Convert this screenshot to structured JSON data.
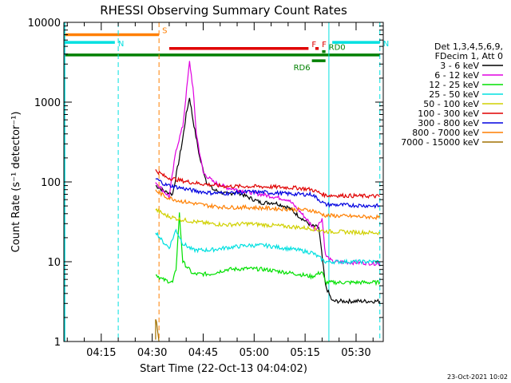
{
  "chart_data": {
    "type": "line",
    "title": "RHESSI Observing Summary Count Rates",
    "xlabel": "Start Time (22-Oct-13 04:04:02)",
    "ylabel": "Count Rate (s⁻¹ detector⁻¹)",
    "y_scale": "log",
    "ylim": [
      1,
      10000
    ],
    "xlim": [
      "04:04",
      "05:38"
    ],
    "x_ticks": [
      "04:15",
      "04:30",
      "04:45",
      "05:00",
      "05:15",
      "05:30"
    ],
    "y_ticks": [
      "1",
      "10",
      "100",
      "1000",
      "10000"
    ],
    "legend_header": [
      "Det 1,3,4,5,6,9,",
      "FDecim 1, Att 0"
    ],
    "timestamp": "23-Oct-2021 10:02",
    "series": [
      {
        "name": "3 - 6 keV",
        "color": "#000000",
        "points": [
          [
            "04:31",
            90
          ],
          [
            "04:34",
            75
          ],
          [
            "04:36",
            70
          ],
          [
            "04:38",
            200
          ],
          [
            "04:39",
            350
          ],
          [
            "04:40",
            700
          ],
          [
            "04:41",
            1150
          ],
          [
            "04:42",
            600
          ],
          [
            "04:44",
            200
          ],
          [
            "04:46",
            100
          ],
          [
            "04:48",
            80
          ],
          [
            "04:52",
            70
          ],
          [
            "04:55",
            75
          ],
          [
            "04:58",
            65
          ],
          [
            "05:02",
            55
          ],
          [
            "05:06",
            55
          ],
          [
            "05:10",
            48
          ],
          [
            "05:14",
            35
          ],
          [
            "05:17",
            28
          ],
          [
            "05:19",
            27
          ],
          [
            "05:21",
            5
          ],
          [
            "05:23",
            3.2
          ],
          [
            "05:37",
            3.2
          ]
        ]
      },
      {
        "name": "6 - 12 keV",
        "color": "#e000e0",
        "points": [
          [
            "04:31",
            100
          ],
          [
            "04:33",
            80
          ],
          [
            "04:35",
            65
          ],
          [
            "04:37",
            250
          ],
          [
            "04:39",
            500
          ],
          [
            "04:41",
            3200
          ],
          [
            "04:42",
            1500
          ],
          [
            "04:43",
            400
          ],
          [
            "04:45",
            130
          ],
          [
            "04:48",
            100
          ],
          [
            "04:52",
            85
          ],
          [
            "04:55",
            80
          ],
          [
            "04:58",
            75
          ],
          [
            "05:02",
            70
          ],
          [
            "05:06",
            65
          ],
          [
            "05:10",
            60
          ],
          [
            "05:13",
            45
          ],
          [
            "05:16",
            32
          ],
          [
            "05:18",
            25
          ],
          [
            "05:20",
            35
          ],
          [
            "05:21",
            12
          ],
          [
            "05:23",
            10
          ],
          [
            "05:37",
            9.5
          ]
        ]
      },
      {
        "name": "12 - 25 keV",
        "color": "#00e000",
        "points": [
          [
            "04:31",
            7
          ],
          [
            "04:33",
            6
          ],
          [
            "04:36",
            5.5
          ],
          [
            "04:37",
            8
          ],
          [
            "04:38",
            40
          ],
          [
            "04:39",
            10
          ],
          [
            "04:42",
            7
          ],
          [
            "04:47",
            7
          ],
          [
            "04:52",
            8
          ],
          [
            "04:58",
            8.2
          ],
          [
            "05:03",
            8
          ],
          [
            "05:08",
            7.5
          ],
          [
            "05:13",
            7
          ],
          [
            "05:17",
            6.5
          ],
          [
            "05:20",
            7.5
          ],
          [
            "05:21",
            5.5
          ],
          [
            "05:37",
            5.5
          ]
        ]
      },
      {
        "name": "25 - 50 keV",
        "color": "#00e0e0",
        "points": [
          [
            "04:31",
            24
          ],
          [
            "04:33",
            18
          ],
          [
            "04:35",
            15
          ],
          [
            "04:37",
            25
          ],
          [
            "04:39",
            17
          ],
          [
            "04:42",
            14
          ],
          [
            "04:47",
            14
          ],
          [
            "04:52",
            15
          ],
          [
            "04:58",
            16
          ],
          [
            "05:03",
            16
          ],
          [
            "05:08",
            15
          ],
          [
            "05:13",
            14
          ],
          [
            "05:17",
            13
          ],
          [
            "05:21",
            10
          ],
          [
            "05:37",
            10
          ]
        ]
      },
      {
        "name": "50 - 100 keV",
        "color": "#d0d000",
        "points": [
          [
            "04:31",
            45
          ],
          [
            "04:34",
            38
          ],
          [
            "04:38",
            34
          ],
          [
            "04:42",
            32
          ],
          [
            "04:47",
            30
          ],
          [
            "04:52",
            29
          ],
          [
            "04:58",
            30
          ],
          [
            "05:03",
            29
          ],
          [
            "05:08",
            28
          ],
          [
            "05:13",
            27
          ],
          [
            "05:17",
            26
          ],
          [
            "05:21",
            24
          ],
          [
            "05:37",
            23
          ]
        ]
      },
      {
        "name": "100 - 300 keV",
        "color": "#e00000",
        "points": [
          [
            "04:31",
            140
          ],
          [
            "04:34",
            115
          ],
          [
            "04:38",
            105
          ],
          [
            "04:42",
            98
          ],
          [
            "04:47",
            92
          ],
          [
            "04:52",
            88
          ],
          [
            "04:58",
            88
          ],
          [
            "05:03",
            87
          ],
          [
            "05:08",
            86
          ],
          [
            "05:13",
            84
          ],
          [
            "05:17",
            80
          ],
          [
            "05:21",
            68
          ],
          [
            "05:37",
            66
          ]
        ]
      },
      {
        "name": "300 - 800 keV",
        "color": "#0000e0",
        "points": [
          [
            "04:31",
            110
          ],
          [
            "04:34",
            92
          ],
          [
            "04:38",
            85
          ],
          [
            "04:42",
            78
          ],
          [
            "04:47",
            73
          ],
          [
            "04:52",
            72
          ],
          [
            "04:58",
            75
          ],
          [
            "05:03",
            74
          ],
          [
            "05:08",
            72
          ],
          [
            "05:13",
            70
          ],
          [
            "05:17",
            70
          ],
          [
            "05:21",
            52
          ],
          [
            "05:37",
            50
          ]
        ]
      },
      {
        "name": "800 - 7000 keV",
        "color": "#ff7f00",
        "points": [
          [
            "04:31",
            78
          ],
          [
            "04:34",
            65
          ],
          [
            "04:38",
            58
          ],
          [
            "04:42",
            54
          ],
          [
            "04:47",
            50
          ],
          [
            "04:52",
            48
          ],
          [
            "04:58",
            48
          ],
          [
            "05:03",
            47
          ],
          [
            "05:08",
            46
          ],
          [
            "05:13",
            45
          ],
          [
            "05:17",
            44
          ],
          [
            "05:21",
            38
          ],
          [
            "05:37",
            36
          ]
        ]
      },
      {
        "name": "7000 - 15000 keV",
        "color": "#a07000",
        "points": [
          [
            "04:31",
            1.0
          ],
          [
            "04:31",
            2.0
          ],
          [
            "04:32",
            1.0
          ]
        ]
      }
    ],
    "flag_bars": [
      {
        "label": "S",
        "color": "#ff7f00",
        "start": "04:04",
        "end": "04:32",
        "level": 7000
      },
      {
        "label": "N",
        "color": "#00e0e0",
        "start": "04:04",
        "end": "04:19",
        "level": 5600
      },
      {
        "label": "N",
        "color": "#00e0e0",
        "start": "05:23",
        "end": "05:37",
        "level": 5600
      },
      {
        "label": "F",
        "color": "#e00000",
        "start": "04:35",
        "end": "05:16",
        "level": 4700
      },
      {
        "label": "F",
        "color": "#e00000",
        "start": "05:18",
        "end": "05:19",
        "level": 4700
      },
      {
        "label": "",
        "color": "#008000",
        "start": "04:04",
        "end": "05:37",
        "level": 3900
      },
      {
        "label": "RD6",
        "color": "#008000",
        "start": "05:17",
        "end": "05:21",
        "level": 3300
      },
      {
        "label": "RD0",
        "color": "#008000",
        "start": "05:20",
        "end": "05:21",
        "level": 4300
      }
    ],
    "vlines": [
      {
        "t": "04:20",
        "color": "#00e0e0",
        "style": "dash"
      },
      {
        "t": "04:32",
        "color": "#ff7f00",
        "style": "dash"
      },
      {
        "t": "05:22",
        "color": "#00e0e0",
        "style": "solid"
      },
      {
        "t": "05:37",
        "color": "#00e0e0",
        "style": "dash"
      }
    ]
  }
}
